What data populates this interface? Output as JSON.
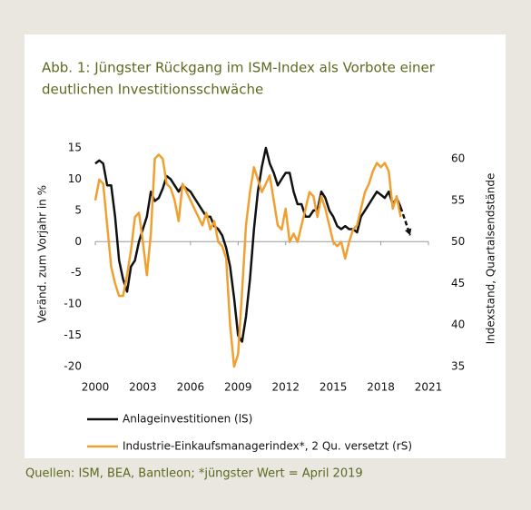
{
  "chart_data": {
    "type": "line",
    "title_lines": [
      "Abb. 1: Jüngster Rückgang im ISM-Index als Vorbote einer",
      "deutlichen Investitionsschwäche"
    ],
    "y_label": "Veränd. zum Vorjahr in %",
    "y2_label": "Indexstand, Quartalsendstände",
    "source": "Quellen: ISM, BEA, Bantleon; *jüngster Wert = April 2019",
    "x": [
      2000,
      2000.25,
      2000.5,
      2000.75,
      2001,
      2001.25,
      2001.5,
      2001.75,
      2002,
      2002.25,
      2002.5,
      2002.75,
      2003,
      2003.25,
      2003.5,
      2003.75,
      2004,
      2004.25,
      2004.5,
      2004.75,
      2005,
      2005.25,
      2005.5,
      2005.75,
      2006,
      2006.25,
      2006.5,
      2006.75,
      2007,
      2007.25,
      2007.5,
      2007.75,
      2008,
      2008.25,
      2008.5,
      2008.75,
      2009,
      2009.25,
      2009.5,
      2009.75,
      2010,
      2010.25,
      2010.5,
      2010.75,
      2011,
      2011.25,
      2011.5,
      2011.75,
      2012,
      2012.25,
      2012.5,
      2012.75,
      2013,
      2013.25,
      2013.5,
      2013.75,
      2014,
      2014.25,
      2014.5,
      2014.75,
      2015,
      2015.25,
      2015.5,
      2015.75,
      2016,
      2016.25,
      2016.5,
      2016.75,
      2017,
      2017.25,
      2017.5,
      2017.75,
      2018,
      2018.25,
      2018.5,
      2018.75,
      2019,
      2019.25
    ],
    "series": [
      {
        "name": "Anlageinvestitionen (lS)",
        "color": "#111111",
        "values": [
          12.5,
          13,
          12.5,
          9,
          9,
          4,
          -3,
          -6,
          -8,
          -4,
          -3,
          0,
          2,
          4,
          8,
          6.5,
          7,
          8.5,
          10.5,
          10,
          9,
          8,
          9,
          8.5,
          8,
          7,
          6,
          5,
          4,
          4,
          2.5,
          2,
          1,
          -1,
          -4,
          -9,
          -15,
          -16,
          -12,
          -6,
          2,
          8,
          12,
          15,
          12.5,
          11,
          9,
          10,
          11,
          11,
          8,
          6,
          6,
          4,
          4,
          5,
          5,
          8,
          7,
          5,
          4,
          2.5,
          2,
          2.5,
          2,
          2,
          1.5,
          4,
          5,
          6,
          7,
          8,
          7.5,
          7,
          8,
          6,
          7,
          5.5
        ]
      },
      {
        "name": "Industrie-Einkaufsmanagerindex*, 2 Qu. versetzt (rS)",
        "color": "#f0a030",
        "axis": "y2",
        "values": [
          55,
          57.5,
          57,
          52,
          47,
          45,
          43.5,
          43.5,
          46,
          49,
          53,
          53.5,
          50,
          46,
          51,
          60,
          60.5,
          60,
          57,
          56.5,
          55,
          52.5,
          57,
          56,
          55,
          54,
          53,
          52,
          53.5,
          51.5,
          52.5,
          50,
          49.5,
          48,
          40,
          35,
          36.5,
          44,
          52,
          56,
          59,
          57.5,
          56,
          57,
          58,
          55,
          52,
          51.5,
          54,
          50,
          51,
          50,
          52,
          54,
          56,
          55.5,
          53,
          55.5,
          54,
          52,
          50,
          49.5,
          50,
          48,
          50,
          51.5,
          52,
          54,
          56,
          57,
          58.5,
          59.5,
          59,
          59.5,
          58.5,
          54,
          55.5,
          53
        ]
      }
    ],
    "arrow": {
      "x": [
        2019.25,
        2019.85
      ],
      "values": [
        5.5,
        1
      ]
    },
    "xlim": [
      2000,
      2021
    ],
    "xticks": [
      2000,
      2003,
      2006,
      2009,
      2012,
      2015,
      2018,
      2021
    ],
    "ylim": [
      -20,
      15
    ],
    "yticks": [
      -20,
      -15,
      -10,
      -5,
      0,
      5,
      10,
      15
    ],
    "y2lim": [
      35,
      60
    ],
    "y2ticks": [
      35,
      40,
      45,
      50,
      55,
      60
    ]
  }
}
